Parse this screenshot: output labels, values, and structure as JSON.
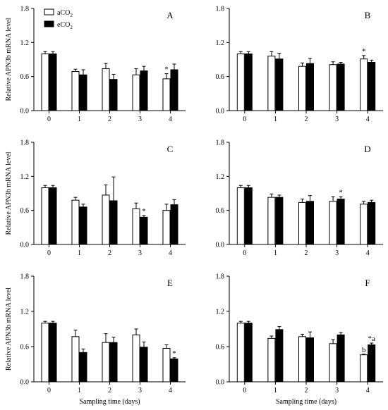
{
  "legend": {
    "entries": [
      {
        "label": "aCO",
        "sub": "2",
        "fill": "#ffffff"
      },
      {
        "label": "eCO",
        "sub": "2",
        "fill": "#000000"
      }
    ]
  },
  "chart_data": [
    {
      "type": "bar",
      "panel": "A",
      "categories": [
        "0",
        "1",
        "2",
        "3",
        "4"
      ],
      "ylabel": "Relative APN3b mRNA level",
      "xlabel": "",
      "ylim": [
        0,
        1.8
      ],
      "yticks": [
        "0.0",
        "0.6",
        "1.2",
        "1.8"
      ],
      "series": [
        {
          "name": "aCO2",
          "values": [
            1.0,
            0.69,
            0.74,
            0.63,
            0.56
          ],
          "errors": [
            0.04,
            0.04,
            0.09,
            0.11,
            0.09
          ]
        },
        {
          "name": "eCO2",
          "values": [
            1.0,
            0.63,
            0.55,
            0.7,
            0.72
          ],
          "errors": [
            0.04,
            0.09,
            0.09,
            0.08,
            0.1
          ]
        }
      ],
      "annotations": [
        {
          "category": "4",
          "series": "aCO2",
          "text": "*"
        }
      ]
    },
    {
      "type": "bar",
      "panel": "B",
      "categories": [
        "0",
        "1",
        "2",
        "3",
        "4"
      ],
      "ylabel": "",
      "xlabel": "",
      "ylim": [
        0,
        1.8
      ],
      "yticks": [
        "0.0",
        "0.6",
        "1.2",
        "1.8"
      ],
      "series": [
        {
          "name": "aCO2",
          "values": [
            1.0,
            0.96,
            0.78,
            0.81,
            0.91
          ],
          "errors": [
            0.04,
            0.08,
            0.06,
            0.05,
            0.06
          ]
        },
        {
          "name": "eCO2",
          "values": [
            1.0,
            0.91,
            0.83,
            0.82,
            0.85
          ],
          "errors": [
            0.04,
            0.1,
            0.09,
            0.03,
            0.04
          ]
        }
      ],
      "annotations": [
        {
          "category": "4",
          "series": "aCO2",
          "text": "*"
        }
      ]
    },
    {
      "type": "bar",
      "panel": "C",
      "categories": [
        "0",
        "1",
        "2",
        "3",
        "4"
      ],
      "ylabel": "Relative APN3b mRNA level",
      "xlabel": "",
      "ylim": [
        0,
        1.8
      ],
      "yticks": [
        "0.0",
        "0.6",
        "1.2",
        "1.8"
      ],
      "series": [
        {
          "name": "aCO2",
          "values": [
            1.0,
            0.78,
            0.87,
            0.63,
            0.6
          ],
          "errors": [
            0.04,
            0.05,
            0.18,
            0.1,
            0.11
          ]
        },
        {
          "name": "eCO2",
          "values": [
            1.0,
            0.66,
            0.77,
            0.48,
            0.7
          ],
          "errors": [
            0.04,
            0.05,
            0.42,
            0.03,
            0.09
          ]
        }
      ],
      "annotations": [
        {
          "category": "3",
          "series": "eCO2",
          "text": "*"
        }
      ]
    },
    {
      "type": "bar",
      "panel": "D",
      "categories": [
        "0",
        "1",
        "2",
        "3",
        "4"
      ],
      "ylabel": "",
      "xlabel": "",
      "ylim": [
        0,
        1.8
      ],
      "yticks": [
        "0.0",
        "0.6",
        "1.2",
        "1.8"
      ],
      "series": [
        {
          "name": "aCO2",
          "values": [
            1.0,
            0.83,
            0.74,
            0.76,
            0.71
          ],
          "errors": [
            0.04,
            0.06,
            0.06,
            0.08,
            0.05
          ]
        },
        {
          "name": "eCO2",
          "values": [
            1.0,
            0.83,
            0.76,
            0.8,
            0.74
          ],
          "errors": [
            0.04,
            0.04,
            0.1,
            0.04,
            0.04
          ]
        }
      ],
      "annotations": [
        {
          "category": "3",
          "series": "eCO2",
          "text": "*"
        }
      ]
    },
    {
      "type": "bar",
      "panel": "E",
      "categories": [
        "0",
        "1",
        "2",
        "3",
        "4"
      ],
      "ylabel": "Relative APN3b mRNA level",
      "xlabel": "Sampling time (days)",
      "ylim": [
        0,
        1.8
      ],
      "yticks": [
        "0.0",
        "0.6",
        "1.2",
        "1.8"
      ],
      "series": [
        {
          "name": "aCO2",
          "values": [
            1.0,
            0.77,
            0.67,
            0.8,
            0.57
          ],
          "errors": [
            0.03,
            0.11,
            0.15,
            0.1,
            0.06
          ]
        },
        {
          "name": "eCO2",
          "values": [
            1.0,
            0.5,
            0.67,
            0.59,
            0.39
          ],
          "errors": [
            0.03,
            0.06,
            0.09,
            0.09,
            0.02
          ]
        }
      ],
      "annotations": [
        {
          "category": "4",
          "series": "eCO2",
          "text": "*"
        }
      ]
    },
    {
      "type": "bar",
      "panel": "F",
      "categories": [
        "0",
        "1",
        "2",
        "3",
        "4"
      ],
      "ylabel": "",
      "xlabel": "Sampling time (days)",
      "ylim": [
        0,
        1.8
      ],
      "yticks": [
        "0.0",
        "0.6",
        "1.2",
        "1.8"
      ],
      "series": [
        {
          "name": "aCO2",
          "values": [
            1.0,
            0.74,
            0.77,
            0.65,
            0.46
          ],
          "errors": [
            0.03,
            0.04,
            0.04,
            0.07,
            0.01
          ]
        },
        {
          "name": "eCO2",
          "values": [
            1.0,
            0.89,
            0.75,
            0.8,
            0.63
          ],
          "errors": [
            0.03,
            0.05,
            0.1,
            0.04,
            0.03
          ]
        }
      ],
      "annotations": [
        {
          "category": "4",
          "series": "aCO2",
          "text": "b"
        },
        {
          "category": "4",
          "series": "eCO2",
          "text": "*a"
        }
      ]
    }
  ]
}
